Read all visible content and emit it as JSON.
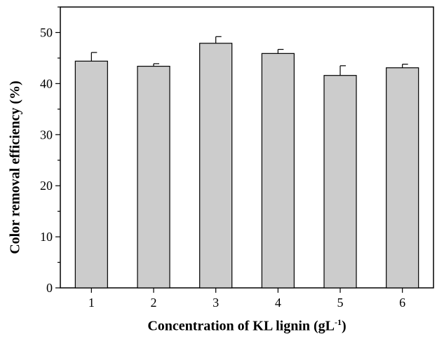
{
  "chart_data": {
    "type": "bar",
    "categories": [
      "1",
      "2",
      "3",
      "4",
      "5",
      "6"
    ],
    "values": [
      44.4,
      43.4,
      47.9,
      45.9,
      41.6,
      43.1
    ],
    "errors": [
      1.7,
      0.5,
      1.3,
      0.8,
      1.9,
      0.7
    ],
    "xlabel_main": "Concentration of KL lignin  (gL",
    "xlabel_sup": "-1",
    "xlabel_end": ")",
    "ylabel": "Color removal efficiency (%)",
    "ylim": [
      0,
      55
    ],
    "yticks": [
      0,
      10,
      20,
      30,
      40,
      50
    ],
    "bar_color": "#cccccc",
    "grid": false
  }
}
